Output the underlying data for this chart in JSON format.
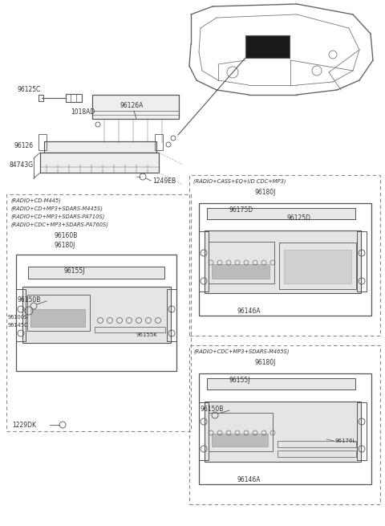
{
  "bg_color": "#ffffff",
  "line_color": "#555555",
  "dashed_box_color": "#888888",
  "text_color": "#333333",
  "parts": {
    "top_section": {
      "antenna_label": "96125C",
      "bracket_label": "96126A",
      "cage_label": "1018AD",
      "cage2_label": "96126",
      "pocket_label": "84743G",
      "screw_label": "1249EB"
    },
    "box1": {
      "title_lines": [
        "(RADIO+CD-M445)",
        "(RADIO+CD+MP3+SDARS-M445S)",
        "(RADIO+CD+MP3+SDARS-PA710S)",
        "(RADIO+CDC+MP3+SDARS-PA760S)"
      ],
      "label_96160B": "96160B",
      "label_96180J": "96180J",
      "label_96155J": "96155J",
      "label_96145C": "96145C",
      "label_96100S": "96100S",
      "label_96150B": "96150B",
      "label_96155K": "96155K",
      "label_1229DK": "1229DK"
    },
    "box2": {
      "title": "(RADIO+CASS+EQ+I/D CDC+MP3)",
      "label_96180J": "96180J",
      "label_96175D": "96175D",
      "label_96125D": "96125D",
      "label_96146A": "96146A"
    },
    "box3": {
      "title": "(RADIO+CDC+MP3+SDARS-M465S)",
      "label_96180J": "96180J",
      "label_96155J": "96155J",
      "label_96176L": "96176L",
      "label_96150B": "96150B",
      "label_96146A": "96146A"
    }
  }
}
